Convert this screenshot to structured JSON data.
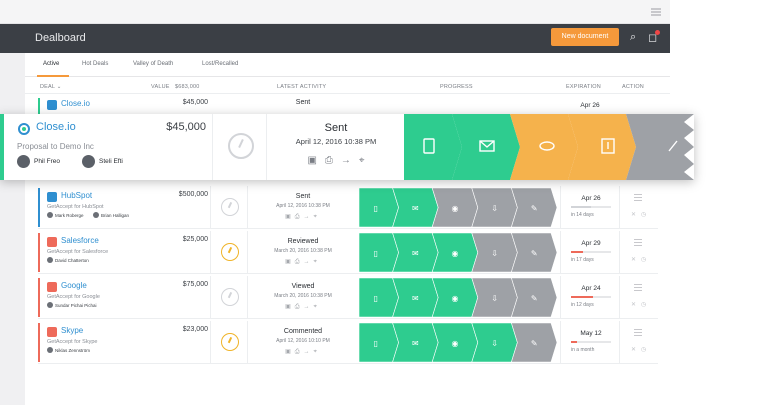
{
  "app": {
    "title": "Dealboard",
    "new_document_label": "New document",
    "search_icon": "search-icon",
    "bell_icon": "bell-icon"
  },
  "tabs": [
    {
      "label": "Active",
      "active": true
    },
    {
      "label": "Hot Deals",
      "active": false
    },
    {
      "label": "Valley of Death",
      "active": false
    },
    {
      "label": "Lost/Recalled",
      "active": false
    }
  ],
  "table": {
    "headers": {
      "deal": "DEAL",
      "deal_sort": "DEAL ⌄",
      "value": "VALUE",
      "value_total": "$683,000",
      "latest_activity": "LATEST ACTIVITY",
      "progress": "PROGRESS",
      "expiration": "EXPIRATION",
      "action": "ACTION"
    }
  },
  "highlight": {
    "company": "Close.io",
    "value": "$45,000",
    "description": "Proposal to Demo Inc",
    "people": [
      "Phil Freo",
      "Steli Efti"
    ],
    "status": "Sent",
    "date": "April 12, 2016 10:38 PM"
  },
  "rows_top": [
    {
      "company": "Close.io",
      "value": "$45,000",
      "status": "Sent",
      "expiration": "Apr 26"
    }
  ],
  "rows": [
    {
      "company": "HubSpot",
      "value": "$500,000",
      "description": "GetAccept for HubSpot",
      "people": [
        "Mark Roberge",
        "Brian Halligan"
      ],
      "status": "Sent",
      "date": "April 12, 2016 10:38 PM",
      "expiration": "Apr 26",
      "expiration_note": "in 14 days",
      "expiration_fill": 0.5,
      "expiration_color": "#d2d4d8",
      "accent": "#2f8fd0",
      "gauge_active": false,
      "steps": [
        "#2ecc8f",
        "#2ecc8f",
        "#9ea1a6",
        "#9ea1a6",
        "#9ea1a6"
      ]
    },
    {
      "company": "Salesforce",
      "value": "$25,000",
      "description": "GetAccept for Salesforce",
      "people": [
        "David Chatterton"
      ],
      "status": "Reviewed",
      "date": "March 20, 2016 10:38 PM",
      "expiration": "Apr 29",
      "expiration_note": "in 17 days",
      "expiration_fill": 0.3,
      "expiration_color": "#ee6a5a",
      "accent": "#ee6a5a",
      "gauge_active": true,
      "steps": [
        "#2ecc8f",
        "#2ecc8f",
        "#2ecc8f",
        "#9ea1a6",
        "#9ea1a6"
      ]
    },
    {
      "company": "Google",
      "value": "$75,000",
      "description": "GetAccept for Google",
      "people": [
        "Sundar Pichai Pichai"
      ],
      "status": "Viewed",
      "date": "March 20, 2016 10:38 PM",
      "expiration": "Apr 24",
      "expiration_note": "in 12 days",
      "expiration_fill": 0.55,
      "expiration_color": "#ee6a5a",
      "accent": "#ee6a5a",
      "gauge_active": false,
      "steps": [
        "#2ecc8f",
        "#2ecc8f",
        "#2ecc8f",
        "#9ea1a6",
        "#9ea1a6"
      ]
    },
    {
      "company": "Skype",
      "value": "$23,000",
      "description": "GetAccept for Skype",
      "people": [
        "Niklas Zennström"
      ],
      "status": "Commented",
      "date": "April 12, 2016 10:10 PM",
      "expiration": "May 12",
      "expiration_note": "in a month",
      "expiration_fill": 0.15,
      "expiration_color": "#ee6a5a",
      "accent": "#ee6a5a",
      "gauge_active": true,
      "steps": [
        "#2ecc8f",
        "#2ecc8f",
        "#2ecc8f",
        "#2ecc8f",
        "#9ea1a6"
      ]
    }
  ],
  "colors": {
    "green": "#2ecc8f",
    "orange": "#f5b24c",
    "gray": "#9ea1a6",
    "accent": "#f5993b"
  }
}
